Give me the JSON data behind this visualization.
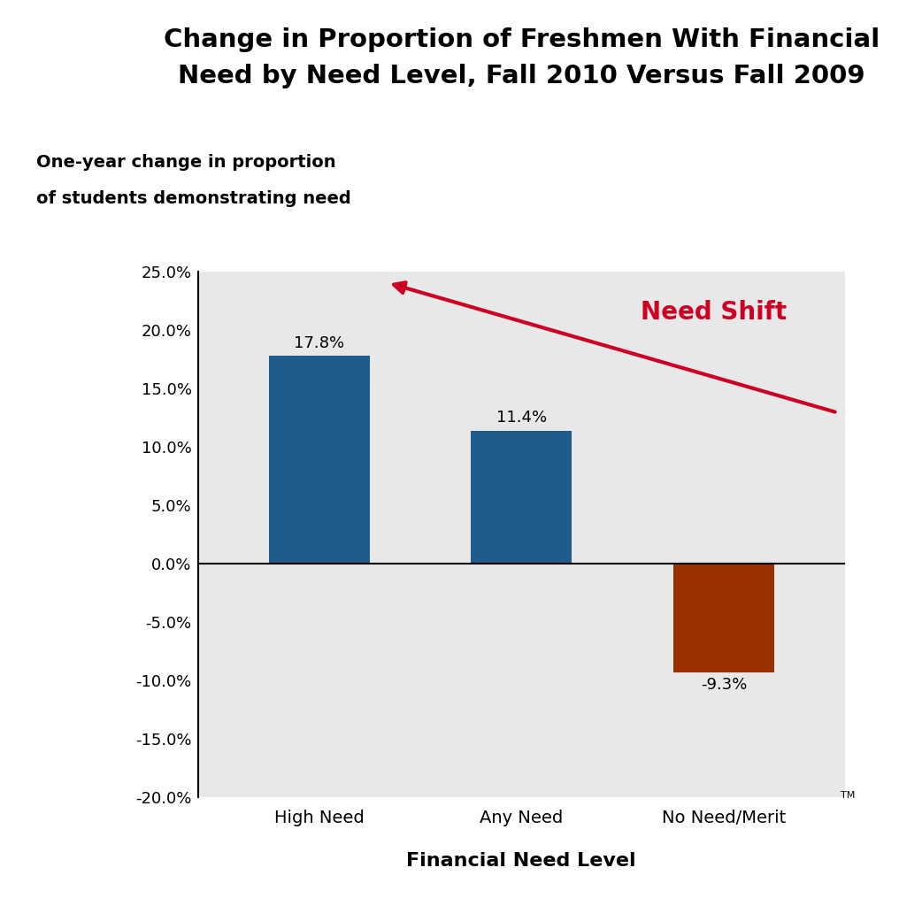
{
  "title_line1": "Change in Proportion of Freshmen With Financial",
  "title_line2": "Need by Need Level, Fall 2010 Versus Fall 2009",
  "ylabel_line1": "One-year change in proportion",
  "ylabel_line2": "of students demonstrating need",
  "xlabel": "Financial Need Level",
  "categories": [
    "High Need",
    "Any Need",
    "No Need/Merit"
  ],
  "values": [
    17.8,
    11.4,
    -9.3
  ],
  "bar_colors": [
    "#1F5C8B",
    "#1F5C8B",
    "#9B3000"
  ],
  "value_labels": [
    "17.8%",
    "11.4%",
    "-9.3%"
  ],
  "ylim": [
    -20,
    25
  ],
  "yticks": [
    -20,
    -15,
    -10,
    -5,
    0,
    5,
    10,
    15,
    20,
    25
  ],
  "ytick_labels": [
    "-20.0%",
    "-15.0%",
    "-10.0%",
    "-5.0%",
    "0.0%",
    "5.0%",
    "10.0%",
    "15.0%",
    "20.0%",
    "25.0%"
  ],
  "plot_bg_color": "#E8E8E8",
  "outer_bg_color": "#FFFFFF",
  "arrow_color": "#CC0022",
  "need_shift_color": "#CC0022",
  "need_shift_label": "Need Shift",
  "tm_label": "TM",
  "title_fontsize": 21,
  "ylabel_fontsize": 14,
  "xlabel_fontsize": 16,
  "bar_label_fontsize": 13,
  "tick_fontsize": 13,
  "cat_fontsize": 14
}
